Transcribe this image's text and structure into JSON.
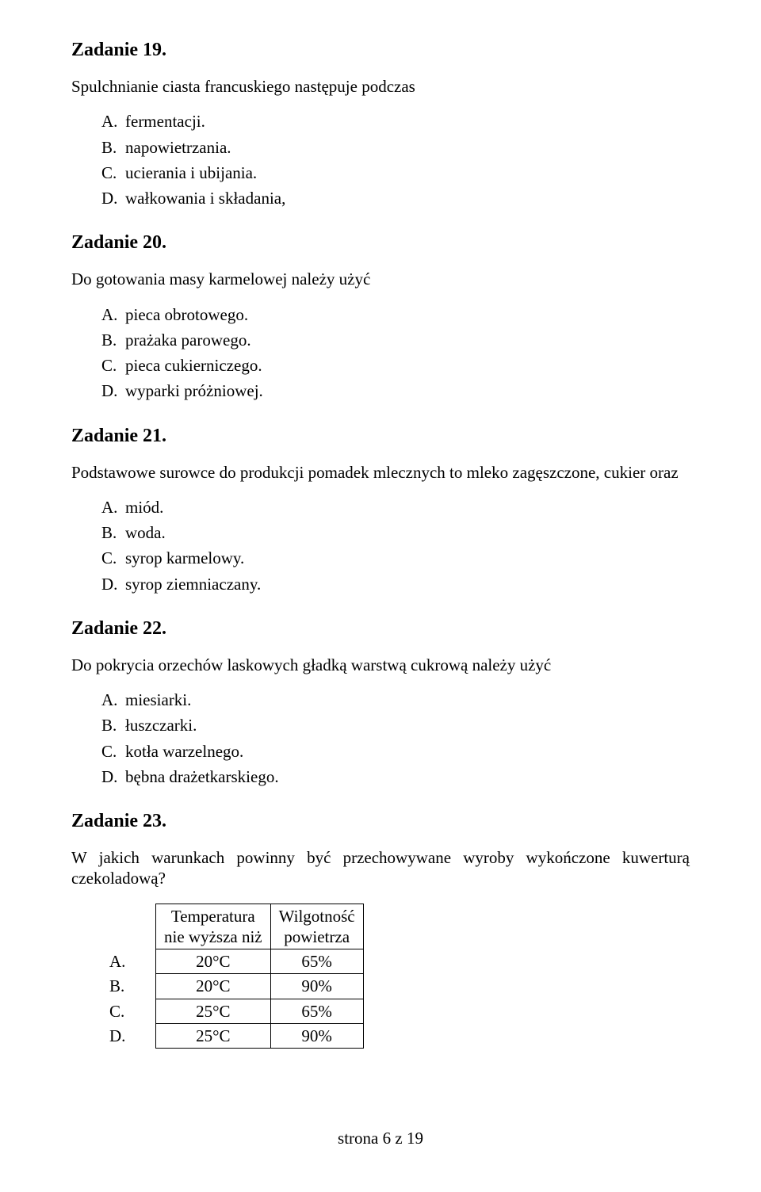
{
  "q19": {
    "heading": "Zadanie 19.",
    "prompt": "Spulchnianie ciasta francuskiego następuje podczas",
    "A": "fermentacji.",
    "B": "napowietrzania.",
    "C": "ucierania i ubijania.",
    "D": "wałkowania i składania,"
  },
  "q20": {
    "heading": "Zadanie 20.",
    "prompt": "Do gotowania masy karmelowej należy użyć",
    "A": "pieca obrotowego.",
    "B": "prażaka parowego.",
    "C": "pieca cukierniczego.",
    "D": "wyparki próżniowej."
  },
  "q21": {
    "heading": "Zadanie 21.",
    "prompt": "Podstawowe surowce do produkcji pomadek mlecznych to mleko zagęszczone, cukier oraz",
    "A": "miód.",
    "B": "woda.",
    "C": "syrop karmelowy.",
    "D": "syrop ziemniaczany."
  },
  "q22": {
    "heading": "Zadanie 22.",
    "prompt": "Do pokrycia orzechów laskowych gładką warstwą cukrową należy użyć",
    "A": "miesiarki.",
    "B": "łuszczarki.",
    "C": "kotła warzelnego.",
    "D": "bębna drażetkarskiego."
  },
  "q23": {
    "heading": "Zadanie 23.",
    "prompt": "W jakich warunkach powinny być przechowywane wyroby wykończone kuwerturą czekoladową?",
    "table": {
      "col1_line1": "Temperatura",
      "col1_line2": "nie wyższa niż",
      "col2_line1": "Wilgotność",
      "col2_line2": "powietrza",
      "rows": [
        {
          "label": "A.",
          "temp": "20°C",
          "hum": "65%"
        },
        {
          "label": "B.",
          "temp": "20°C",
          "hum": "90%"
        },
        {
          "label": "C.",
          "temp": "25°C",
          "hum": "65%"
        },
        {
          "label": "D.",
          "temp": "25°C",
          "hum": "90%"
        }
      ]
    }
  },
  "letters": {
    "A": "A.",
    "B": "B.",
    "C": "C.",
    "D": "D."
  },
  "footer": "strona 6 z 19"
}
